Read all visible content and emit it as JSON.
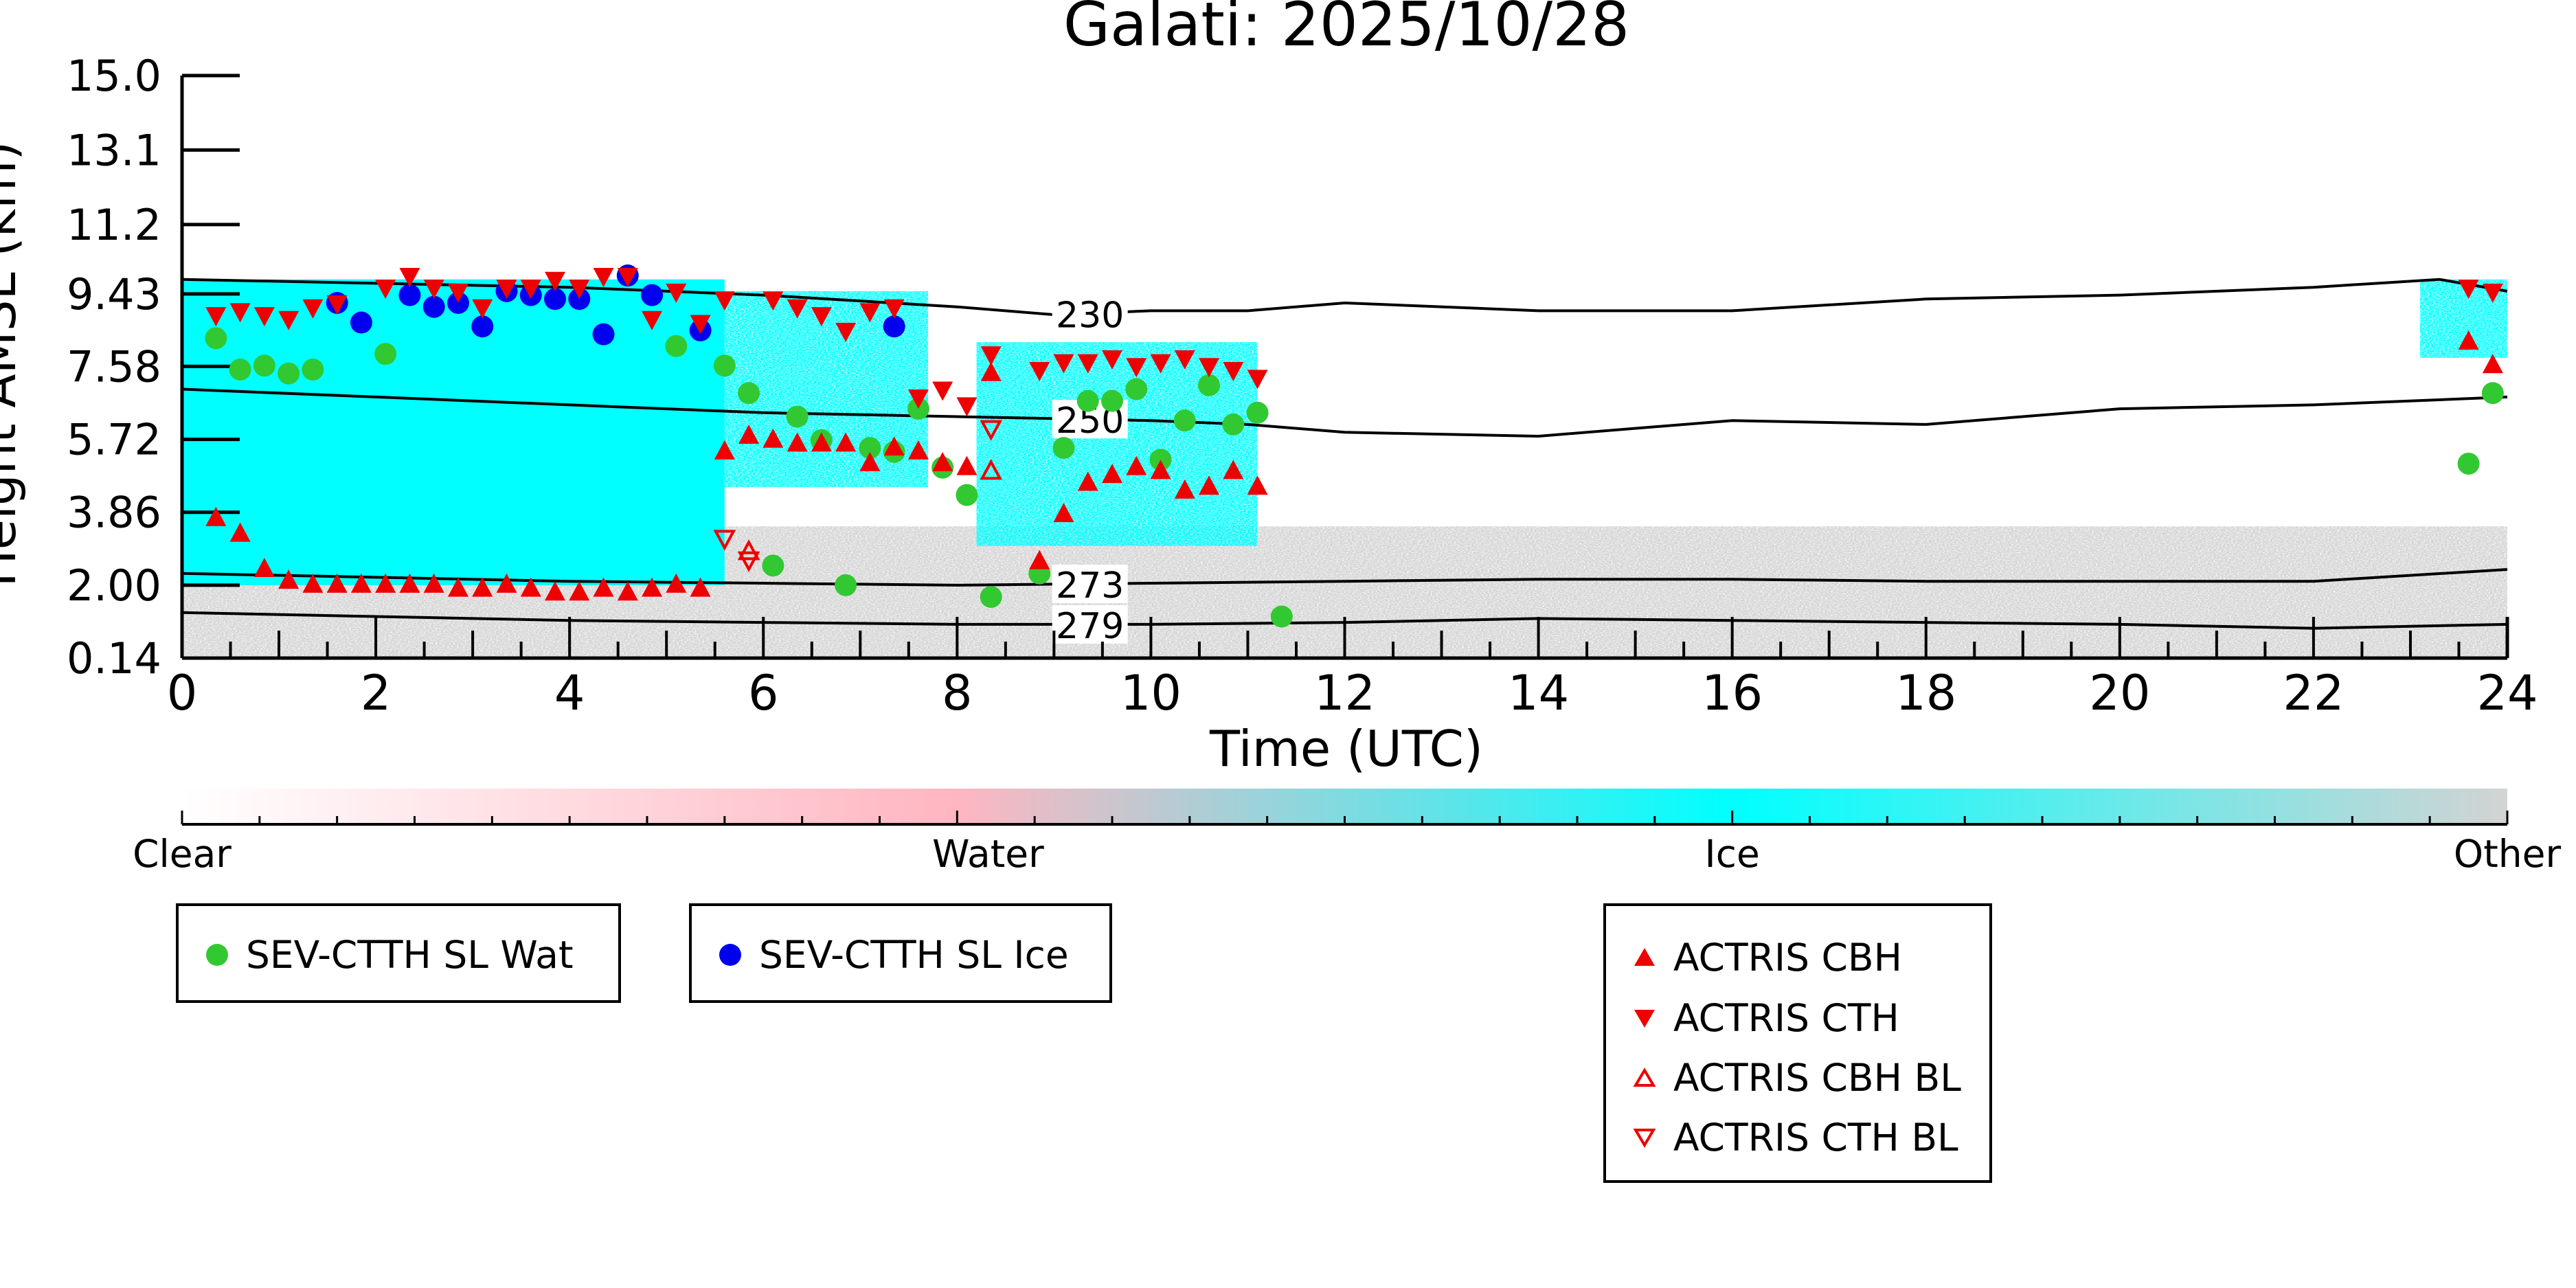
{
  "chart_data": {
    "type": "scatter",
    "title": "Galati: 2025/10/28",
    "xlabel": "Time (UTC)",
    "ylabel": "Height AMSL (km)",
    "xlim": [
      0,
      24
    ],
    "ylim": [
      0.14,
      15.0
    ],
    "xticks": [
      0,
      2,
      4,
      6,
      8,
      10,
      12,
      14,
      16,
      18,
      20,
      22,
      24
    ],
    "yticks": [
      0.14,
      2.0,
      3.86,
      5.72,
      7.58,
      9.43,
      11.2,
      13.1,
      15.0
    ],
    "ytick_labels": [
      "0.14",
      "2.00",
      "3.86",
      "5.72",
      "7.58",
      "9.43",
      "11.2",
      "13.1",
      "15.0"
    ],
    "background_classes": {
      "ice_region_1": {
        "x": [
          0,
          5.6
        ],
        "y": [
          2.0,
          9.8
        ],
        "class": "Ice"
      },
      "ice_region_2": {
        "x": [
          5.6,
          7.7
        ],
        "y": [
          4.5,
          9.5
        ],
        "class": "Ice (scattered)"
      },
      "ice_region_3": {
        "x": [
          8.2,
          11.1
        ],
        "y": [
          3.0,
          8.2
        ],
        "class": "Ice"
      },
      "ice_region_4": {
        "x": [
          23.1,
          24
        ],
        "y": [
          7.8,
          9.8
        ],
        "class": "Ice"
      },
      "other_low": {
        "x": [
          0,
          24
        ],
        "y": [
          0.14,
          3.5
        ],
        "class": "Other"
      }
    },
    "temperature_contours": [
      {
        "label": "230",
        "label_x": 9.3,
        "x": [
          0,
          2,
          4,
          6,
          8,
          9,
          10,
          11,
          12,
          14,
          16,
          18,
          20,
          22,
          23.3,
          24
        ],
        "y": [
          9.8,
          9.7,
          9.6,
          9.4,
          9.1,
          8.9,
          9.0,
          9.0,
          9.2,
          9.0,
          9.0,
          9.3,
          9.4,
          9.6,
          9.8,
          9.5
        ]
      },
      {
        "label": "250",
        "label_x": 9.3,
        "x": [
          0,
          2,
          4,
          6,
          8,
          10,
          11,
          12,
          14,
          16,
          18,
          20,
          22,
          24
        ],
        "y": [
          7.0,
          6.8,
          6.6,
          6.4,
          6.3,
          6.2,
          6.1,
          5.9,
          5.8,
          6.2,
          6.1,
          6.5,
          6.6,
          6.8
        ]
      },
      {
        "label": "273",
        "label_x": 9.3,
        "x": [
          0,
          2,
          4,
          6,
          8,
          10,
          12,
          14,
          16,
          18,
          20,
          22,
          24
        ],
        "y": [
          2.3,
          2.2,
          2.1,
          2.05,
          2.0,
          2.05,
          2.1,
          2.15,
          2.15,
          2.1,
          2.1,
          2.1,
          2.4
        ]
      },
      {
        "label": "279",
        "label_x": 9.3,
        "x": [
          0,
          2,
          4,
          6,
          8,
          10,
          12,
          14,
          16,
          18,
          20,
          22,
          24
        ],
        "y": [
          1.3,
          1.2,
          1.1,
          1.05,
          1.0,
          1.0,
          1.05,
          1.15,
          1.1,
          1.05,
          1.0,
          0.9,
          1.0
        ]
      }
    ],
    "series": [
      {
        "name": "SEV-CTTH SL Wat",
        "marker": "circle",
        "color": "#32c832",
        "x": [
          0.35,
          0.6,
          0.85,
          1.1,
          1.35,
          2.1,
          5.1,
          5.6,
          5.85,
          6.1,
          6.35,
          6.6,
          6.85,
          7.1,
          7.35,
          7.6,
          7.85,
          8.1,
          8.35,
          8.85,
          9.1,
          9.35,
          9.6,
          9.85,
          10.1,
          10.35,
          10.6,
          10.85,
          11.1,
          11.35,
          23.6,
          23.85
        ],
        "y": [
          8.3,
          7.5,
          7.6,
          7.4,
          7.5,
          7.9,
          8.1,
          7.6,
          6.9,
          2.5,
          6.3,
          5.7,
          2.0,
          5.5,
          5.4,
          6.5,
          5.0,
          4.3,
          1.7,
          2.3,
          5.5,
          6.7,
          6.7,
          7.0,
          5.2,
          6.2,
          7.1,
          6.1,
          6.4,
          1.2,
          5.1,
          6.9
        ]
      },
      {
        "name": "SEV-CTTH SL Ice",
        "marker": "circle",
        "color": "#0000ee",
        "x": [
          1.6,
          1.85,
          2.35,
          2.6,
          2.85,
          3.1,
          3.35,
          3.6,
          3.85,
          4.1,
          4.35,
          4.6,
          4.85,
          5.35,
          7.35
        ],
        "y": [
          9.2,
          8.7,
          9.4,
          9.1,
          9.2,
          8.6,
          9.5,
          9.4,
          9.3,
          9.3,
          8.4,
          9.9,
          9.4,
          8.5,
          8.6
        ]
      },
      {
        "name": "ACTRIS CBH",
        "marker": "triangle-up",
        "color": "#ee0000",
        "x": [
          0.35,
          0.6,
          0.85,
          1.1,
          1.35,
          1.6,
          1.85,
          2.1,
          2.35,
          2.6,
          2.85,
          3.1,
          3.35,
          3.6,
          3.85,
          4.1,
          4.35,
          4.6,
          4.85,
          5.1,
          5.35,
          5.6,
          5.85,
          6.1,
          6.35,
          6.6,
          6.85,
          7.1,
          7.35,
          7.6,
          7.85,
          8.1,
          8.35,
          8.85,
          9.1,
          9.35,
          9.6,
          9.85,
          10.1,
          10.35,
          10.6,
          10.85,
          11.1,
          23.6,
          23.85
        ],
        "y": [
          3.7,
          3.3,
          2.4,
          2.1,
          2.0,
          2.0,
          2.0,
          2.0,
          2.0,
          2.0,
          1.9,
          1.9,
          2.0,
          1.9,
          1.8,
          1.8,
          1.9,
          1.8,
          1.9,
          2.0,
          1.9,
          5.4,
          5.8,
          5.7,
          5.6,
          5.6,
          5.6,
          5.1,
          5.5,
          5.4,
          5.1,
          5.0,
          7.4,
          2.6,
          3.8,
          4.6,
          4.8,
          5.0,
          4.9,
          4.4,
          4.5,
          4.9,
          4.5,
          8.2,
          7.6
        ]
      },
      {
        "name": "ACTRIS CTH",
        "marker": "triangle-down",
        "color": "#ee0000",
        "x": [
          0.35,
          0.6,
          0.85,
          1.1,
          1.35,
          1.6,
          2.1,
          2.35,
          2.6,
          2.85,
          3.1,
          3.35,
          3.6,
          3.85,
          4.1,
          4.35,
          4.6,
          4.85,
          5.1,
          5.35,
          5.6,
          6.1,
          6.35,
          6.6,
          6.85,
          7.1,
          7.35,
          7.6,
          7.85,
          8.1,
          8.35,
          8.85,
          9.1,
          9.35,
          9.6,
          9.85,
          10.1,
          10.35,
          10.6,
          10.85,
          11.1,
          23.6,
          23.85
        ],
        "y": [
          8.9,
          9.0,
          8.9,
          8.8,
          9.1,
          9.2,
          9.6,
          9.9,
          9.6,
          9.5,
          9.1,
          9.6,
          9.6,
          9.8,
          9.6,
          9.9,
          9.9,
          8.8,
          9.5,
          8.7,
          9.3,
          9.3,
          9.1,
          8.9,
          8.5,
          9.0,
          9.1,
          6.8,
          7.0,
          6.6,
          7.9,
          7.5,
          7.7,
          7.7,
          7.8,
          7.6,
          7.7,
          7.8,
          7.6,
          7.5,
          7.3,
          9.6,
          9.5
        ]
      },
      {
        "name": "ACTRIS CBH BL",
        "marker": "triangle-up-open",
        "color": "#ee0000",
        "x": [
          5.85,
          8.35
        ],
        "y": [
          2.85,
          4.9
        ]
      },
      {
        "name": "ACTRIS CTH BL",
        "marker": "triangle-down-open",
        "color": "#ee0000",
        "x": [
          5.6,
          5.85,
          8.35
        ],
        "y": [
          3.2,
          2.65,
          6.0
        ]
      }
    ],
    "colorbar": {
      "tick_labels": [
        "Clear",
        "Water",
        "Ice",
        "Other"
      ],
      "colors": [
        "#ffffff",
        "#ffb6c1",
        "#00ffff",
        "#d3d3d3"
      ]
    },
    "legend_placement": "bottom"
  },
  "legend": {
    "box1": [
      "SEV-CTTH SL Wat"
    ],
    "box2": [
      "SEV-CTTH SL Ice"
    ],
    "box3": [
      "ACTRIS CBH",
      "ACTRIS CTH",
      "ACTRIS CBH BL",
      "ACTRIS CTH BL"
    ]
  },
  "colors": {
    "water_marker": "#32c832",
    "ice_marker": "#0000ee",
    "actris_marker": "#ee0000",
    "ice_fill": "#00ffff",
    "other_fill": "#d3d3d3",
    "water_fill": "#ffb6c1"
  }
}
